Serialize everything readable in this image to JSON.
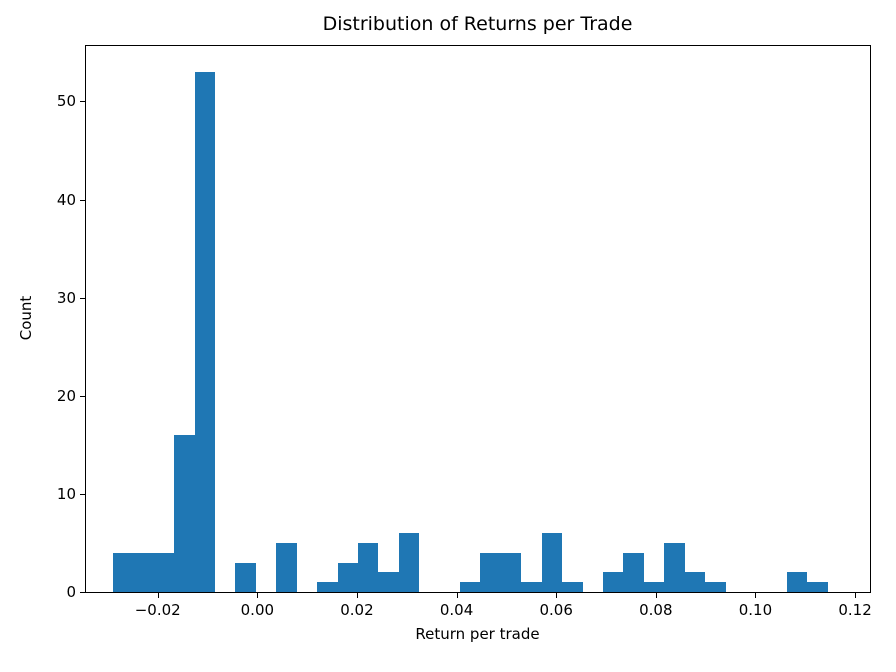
{
  "chart_data": {
    "type": "histogram",
    "title": "Distribution of Returns per Trade",
    "xlabel": "Return per trade",
    "ylabel": "Count",
    "bar_color": "#1f77b4",
    "grid": false,
    "legend": null,
    "xlim": [
      -0.0344,
      0.123
    ],
    "ylim": [
      0,
      55.65
    ],
    "bin_edges": [
      -0.029,
      -0.0249,
      -0.0208,
      -0.0167,
      -0.0126,
      -0.0085,
      -0.0044,
      -0.0003,
      0.0038,
      0.0079,
      0.012,
      0.0161,
      0.0202,
      0.0243,
      0.0284,
      0.0325,
      0.0366,
      0.0407,
      0.0448,
      0.0489,
      0.053,
      0.0571,
      0.0612,
      0.0653,
      0.0694,
      0.0735,
      0.0776,
      0.0817,
      0.0858,
      0.0899,
      0.094,
      0.0981,
      0.1022,
      0.1063,
      0.1104,
      0.1145
    ],
    "counts": [
      4,
      4,
      4,
      16,
      53,
      0,
      3,
      0,
      5,
      0,
      1,
      3,
      5,
      2,
      6,
      0,
      0,
      1,
      4,
      4,
      1,
      6,
      1,
      0,
      2,
      4,
      1,
      5,
      2,
      1,
      0,
      0,
      0,
      2,
      1
    ],
    "xticks": [
      {
        "v": -0.02,
        "label": "−0.02"
      },
      {
        "v": 0.0,
        "label": "0.00"
      },
      {
        "v": 0.02,
        "label": "0.02"
      },
      {
        "v": 0.04,
        "label": "0.04"
      },
      {
        "v": 0.06,
        "label": "0.06"
      },
      {
        "v": 0.08,
        "label": "0.08"
      },
      {
        "v": 0.1,
        "label": "0.10"
      },
      {
        "v": 0.12,
        "label": "0.12"
      }
    ],
    "yticks": [
      {
        "v": 0,
        "label": "0"
      },
      {
        "v": 10,
        "label": "10"
      },
      {
        "v": 20,
        "label": "20"
      },
      {
        "v": 30,
        "label": "30"
      },
      {
        "v": 40,
        "label": "40"
      },
      {
        "v": 50,
        "label": "50"
      }
    ]
  }
}
